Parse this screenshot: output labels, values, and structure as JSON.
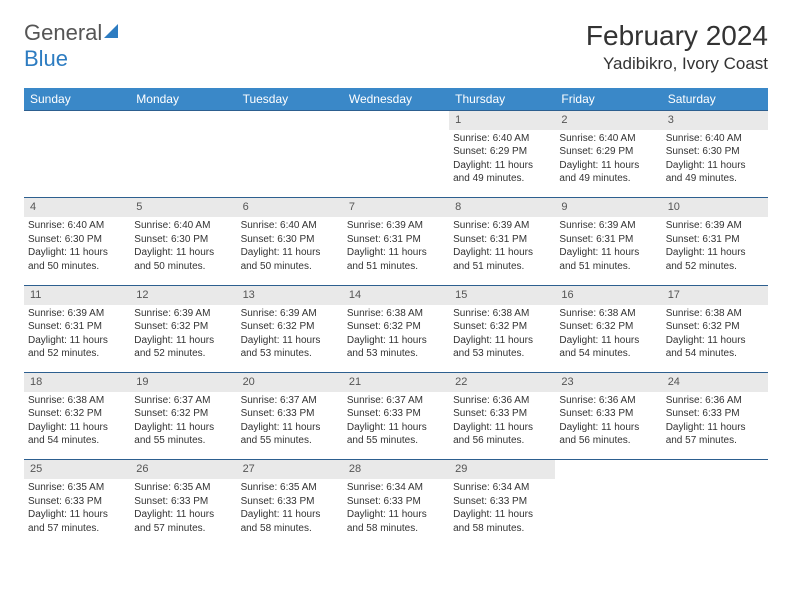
{
  "logo": {
    "word1": "General",
    "word2": "Blue"
  },
  "title": {
    "month": "February 2024",
    "location": "Yadibikro, Ivory Coast"
  },
  "colors": {
    "header_bg": "#3a88c8",
    "header_fg": "#ffffff",
    "daynum_bg": "#e9e9e9",
    "row_border": "#2d5f8f",
    "logo_blue": "#2d7cc1",
    "text": "#333333"
  },
  "weekdays": [
    "Sunday",
    "Monday",
    "Tuesday",
    "Wednesday",
    "Thursday",
    "Friday",
    "Saturday"
  ],
  "weeks": [
    {
      "days": [
        {
          "n": "",
          "sunrise": "",
          "sunset": "",
          "daylight": ""
        },
        {
          "n": "",
          "sunrise": "",
          "sunset": "",
          "daylight": ""
        },
        {
          "n": "",
          "sunrise": "",
          "sunset": "",
          "daylight": ""
        },
        {
          "n": "",
          "sunrise": "",
          "sunset": "",
          "daylight": ""
        },
        {
          "n": "1",
          "sunrise": "Sunrise: 6:40 AM",
          "sunset": "Sunset: 6:29 PM",
          "daylight": "Daylight: 11 hours and 49 minutes."
        },
        {
          "n": "2",
          "sunrise": "Sunrise: 6:40 AM",
          "sunset": "Sunset: 6:29 PM",
          "daylight": "Daylight: 11 hours and 49 minutes."
        },
        {
          "n": "3",
          "sunrise": "Sunrise: 6:40 AM",
          "sunset": "Sunset: 6:30 PM",
          "daylight": "Daylight: 11 hours and 49 minutes."
        }
      ]
    },
    {
      "days": [
        {
          "n": "4",
          "sunrise": "Sunrise: 6:40 AM",
          "sunset": "Sunset: 6:30 PM",
          "daylight": "Daylight: 11 hours and 50 minutes."
        },
        {
          "n": "5",
          "sunrise": "Sunrise: 6:40 AM",
          "sunset": "Sunset: 6:30 PM",
          "daylight": "Daylight: 11 hours and 50 minutes."
        },
        {
          "n": "6",
          "sunrise": "Sunrise: 6:40 AM",
          "sunset": "Sunset: 6:30 PM",
          "daylight": "Daylight: 11 hours and 50 minutes."
        },
        {
          "n": "7",
          "sunrise": "Sunrise: 6:39 AM",
          "sunset": "Sunset: 6:31 PM",
          "daylight": "Daylight: 11 hours and 51 minutes."
        },
        {
          "n": "8",
          "sunrise": "Sunrise: 6:39 AM",
          "sunset": "Sunset: 6:31 PM",
          "daylight": "Daylight: 11 hours and 51 minutes."
        },
        {
          "n": "9",
          "sunrise": "Sunrise: 6:39 AM",
          "sunset": "Sunset: 6:31 PM",
          "daylight": "Daylight: 11 hours and 51 minutes."
        },
        {
          "n": "10",
          "sunrise": "Sunrise: 6:39 AM",
          "sunset": "Sunset: 6:31 PM",
          "daylight": "Daylight: 11 hours and 52 minutes."
        }
      ]
    },
    {
      "days": [
        {
          "n": "11",
          "sunrise": "Sunrise: 6:39 AM",
          "sunset": "Sunset: 6:31 PM",
          "daylight": "Daylight: 11 hours and 52 minutes."
        },
        {
          "n": "12",
          "sunrise": "Sunrise: 6:39 AM",
          "sunset": "Sunset: 6:32 PM",
          "daylight": "Daylight: 11 hours and 52 minutes."
        },
        {
          "n": "13",
          "sunrise": "Sunrise: 6:39 AM",
          "sunset": "Sunset: 6:32 PM",
          "daylight": "Daylight: 11 hours and 53 minutes."
        },
        {
          "n": "14",
          "sunrise": "Sunrise: 6:38 AM",
          "sunset": "Sunset: 6:32 PM",
          "daylight": "Daylight: 11 hours and 53 minutes."
        },
        {
          "n": "15",
          "sunrise": "Sunrise: 6:38 AM",
          "sunset": "Sunset: 6:32 PM",
          "daylight": "Daylight: 11 hours and 53 minutes."
        },
        {
          "n": "16",
          "sunrise": "Sunrise: 6:38 AM",
          "sunset": "Sunset: 6:32 PM",
          "daylight": "Daylight: 11 hours and 54 minutes."
        },
        {
          "n": "17",
          "sunrise": "Sunrise: 6:38 AM",
          "sunset": "Sunset: 6:32 PM",
          "daylight": "Daylight: 11 hours and 54 minutes."
        }
      ]
    },
    {
      "days": [
        {
          "n": "18",
          "sunrise": "Sunrise: 6:38 AM",
          "sunset": "Sunset: 6:32 PM",
          "daylight": "Daylight: 11 hours and 54 minutes."
        },
        {
          "n": "19",
          "sunrise": "Sunrise: 6:37 AM",
          "sunset": "Sunset: 6:32 PM",
          "daylight": "Daylight: 11 hours and 55 minutes."
        },
        {
          "n": "20",
          "sunrise": "Sunrise: 6:37 AM",
          "sunset": "Sunset: 6:33 PM",
          "daylight": "Daylight: 11 hours and 55 minutes."
        },
        {
          "n": "21",
          "sunrise": "Sunrise: 6:37 AM",
          "sunset": "Sunset: 6:33 PM",
          "daylight": "Daylight: 11 hours and 55 minutes."
        },
        {
          "n": "22",
          "sunrise": "Sunrise: 6:36 AM",
          "sunset": "Sunset: 6:33 PM",
          "daylight": "Daylight: 11 hours and 56 minutes."
        },
        {
          "n": "23",
          "sunrise": "Sunrise: 6:36 AM",
          "sunset": "Sunset: 6:33 PM",
          "daylight": "Daylight: 11 hours and 56 minutes."
        },
        {
          "n": "24",
          "sunrise": "Sunrise: 6:36 AM",
          "sunset": "Sunset: 6:33 PM",
          "daylight": "Daylight: 11 hours and 57 minutes."
        }
      ]
    },
    {
      "days": [
        {
          "n": "25",
          "sunrise": "Sunrise: 6:35 AM",
          "sunset": "Sunset: 6:33 PM",
          "daylight": "Daylight: 11 hours and 57 minutes."
        },
        {
          "n": "26",
          "sunrise": "Sunrise: 6:35 AM",
          "sunset": "Sunset: 6:33 PM",
          "daylight": "Daylight: 11 hours and 57 minutes."
        },
        {
          "n": "27",
          "sunrise": "Sunrise: 6:35 AM",
          "sunset": "Sunset: 6:33 PM",
          "daylight": "Daylight: 11 hours and 58 minutes."
        },
        {
          "n": "28",
          "sunrise": "Sunrise: 6:34 AM",
          "sunset": "Sunset: 6:33 PM",
          "daylight": "Daylight: 11 hours and 58 minutes."
        },
        {
          "n": "29",
          "sunrise": "Sunrise: 6:34 AM",
          "sunset": "Sunset: 6:33 PM",
          "daylight": "Daylight: 11 hours and 58 minutes."
        },
        {
          "n": "",
          "sunrise": "",
          "sunset": "",
          "daylight": ""
        },
        {
          "n": "",
          "sunrise": "",
          "sunset": "",
          "daylight": ""
        }
      ]
    }
  ]
}
